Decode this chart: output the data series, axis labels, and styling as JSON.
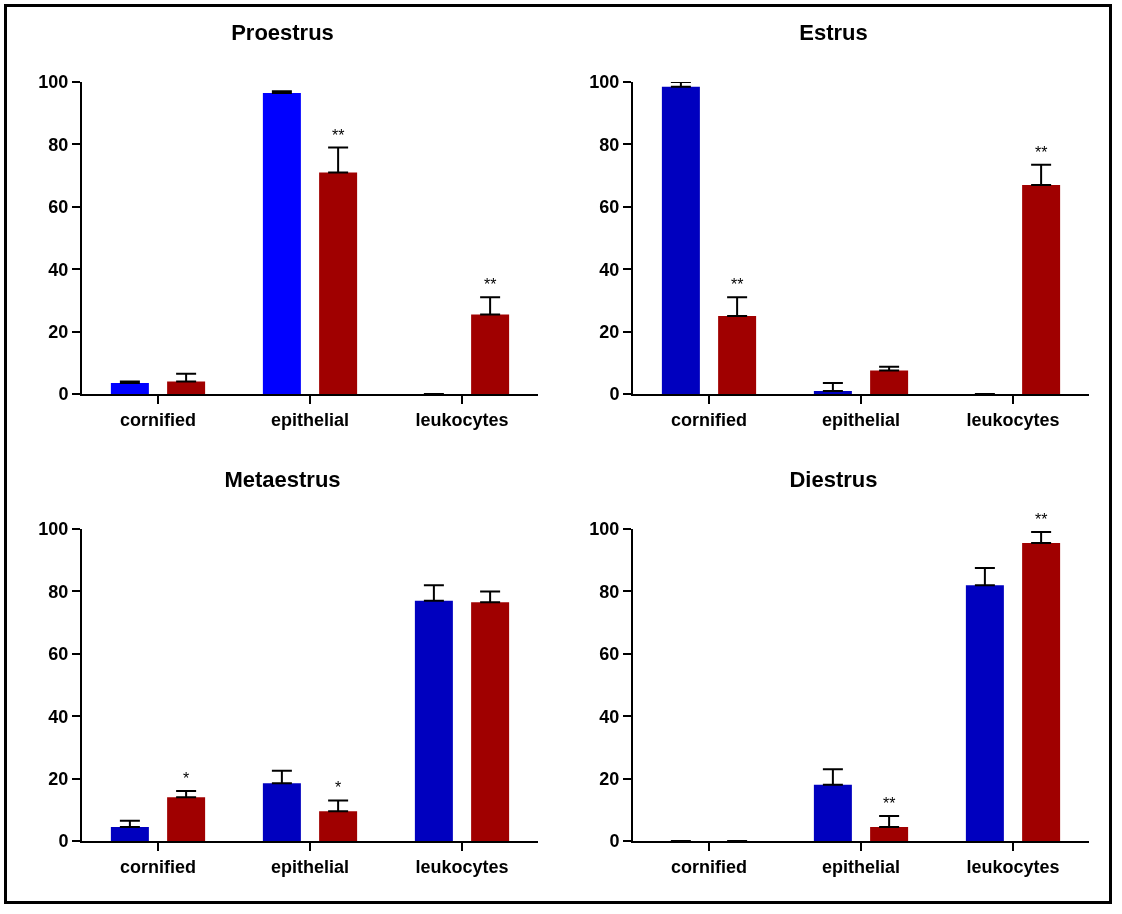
{
  "chart_data": [
    {
      "type": "bar",
      "title": "Proestrus",
      "categories": [
        "cornified",
        "epithelial",
        "leukocytes"
      ],
      "series": [
        {
          "color": "#0000ff",
          "values": [
            3.5,
            96.5,
            0
          ],
          "errors": [
            [
              3.5,
              4
            ],
            [
              96.5,
              97
            ],
            null
          ]
        },
        {
          "color": "#a00000",
          "values": [
            4,
            71,
            25.5
          ],
          "errors": [
            [
              4,
              6.5
            ],
            [
              71,
              79
            ],
            [
              25.5,
              31
            ]
          ],
          "value_labels": [
            null,
            "**",
            "**"
          ]
        }
      ],
      "ylim": [
        0,
        100
      ],
      "yticks": [
        0,
        20,
        40,
        60,
        80,
        100
      ],
      "grid": false
    },
    {
      "type": "bar",
      "title": "Estrus",
      "categories": [
        "cornified",
        "epithelial",
        "leukocytes"
      ],
      "series": [
        {
          "color": "#0000bf",
          "values": [
            98.5,
            1,
            0
          ],
          "errors": [
            [
              98.5,
              100
            ],
            [
              1,
              3.5
            ],
            null
          ]
        },
        {
          "color": "#a00000",
          "values": [
            25,
            7.5,
            67
          ],
          "errors": [
            [
              25,
              31
            ],
            [
              7.5,
              8.7
            ],
            [
              67,
              73.5
            ]
          ],
          "value_labels": [
            "**",
            null,
            "**"
          ]
        }
      ],
      "ylim": [
        0,
        100
      ],
      "yticks": [
        0,
        20,
        40,
        60,
        80,
        100
      ],
      "grid": false
    },
    {
      "type": "bar",
      "title": "Metaestrus",
      "categories": [
        "cornified",
        "epithelial",
        "leukocytes"
      ],
      "series": [
        {
          "color": "#0000bf",
          "values": [
            4.5,
            18.5,
            77
          ],
          "errors": [
            [
              4.5,
              6.5
            ],
            [
              18.5,
              22.5
            ],
            [
              77,
              82
            ]
          ]
        },
        {
          "color": "#a00000",
          "values": [
            14,
            9.5,
            76.5
          ],
          "errors": [
            [
              14,
              16
            ],
            [
              9.5,
              13
            ],
            [
              76.5,
              80
            ]
          ],
          "value_labels": [
            "*",
            "*",
            null
          ]
        }
      ],
      "ylim": [
        0,
        100
      ],
      "yticks": [
        0,
        20,
        40,
        60,
        80,
        100
      ],
      "grid": false
    },
    {
      "type": "bar",
      "title": "Diestrus",
      "categories": [
        "cornified",
        "epithelial",
        "leukocytes"
      ],
      "series": [
        {
          "color": "#0000bf",
          "values": [
            0,
            18,
            82
          ],
          "errors": [
            null,
            [
              18,
              23
            ],
            [
              82,
              87.5
            ]
          ]
        },
        {
          "color": "#a00000",
          "values": [
            0,
            4.5,
            95.5
          ],
          "errors": [
            null,
            [
              4.5,
              8
            ],
            [
              95.5,
              99
            ]
          ],
          "value_labels": [
            null,
            "**",
            "**"
          ]
        }
      ],
      "ylim": [
        0,
        100
      ],
      "yticks": [
        0,
        20,
        40,
        60,
        80,
        100
      ],
      "grid": false
    }
  ]
}
